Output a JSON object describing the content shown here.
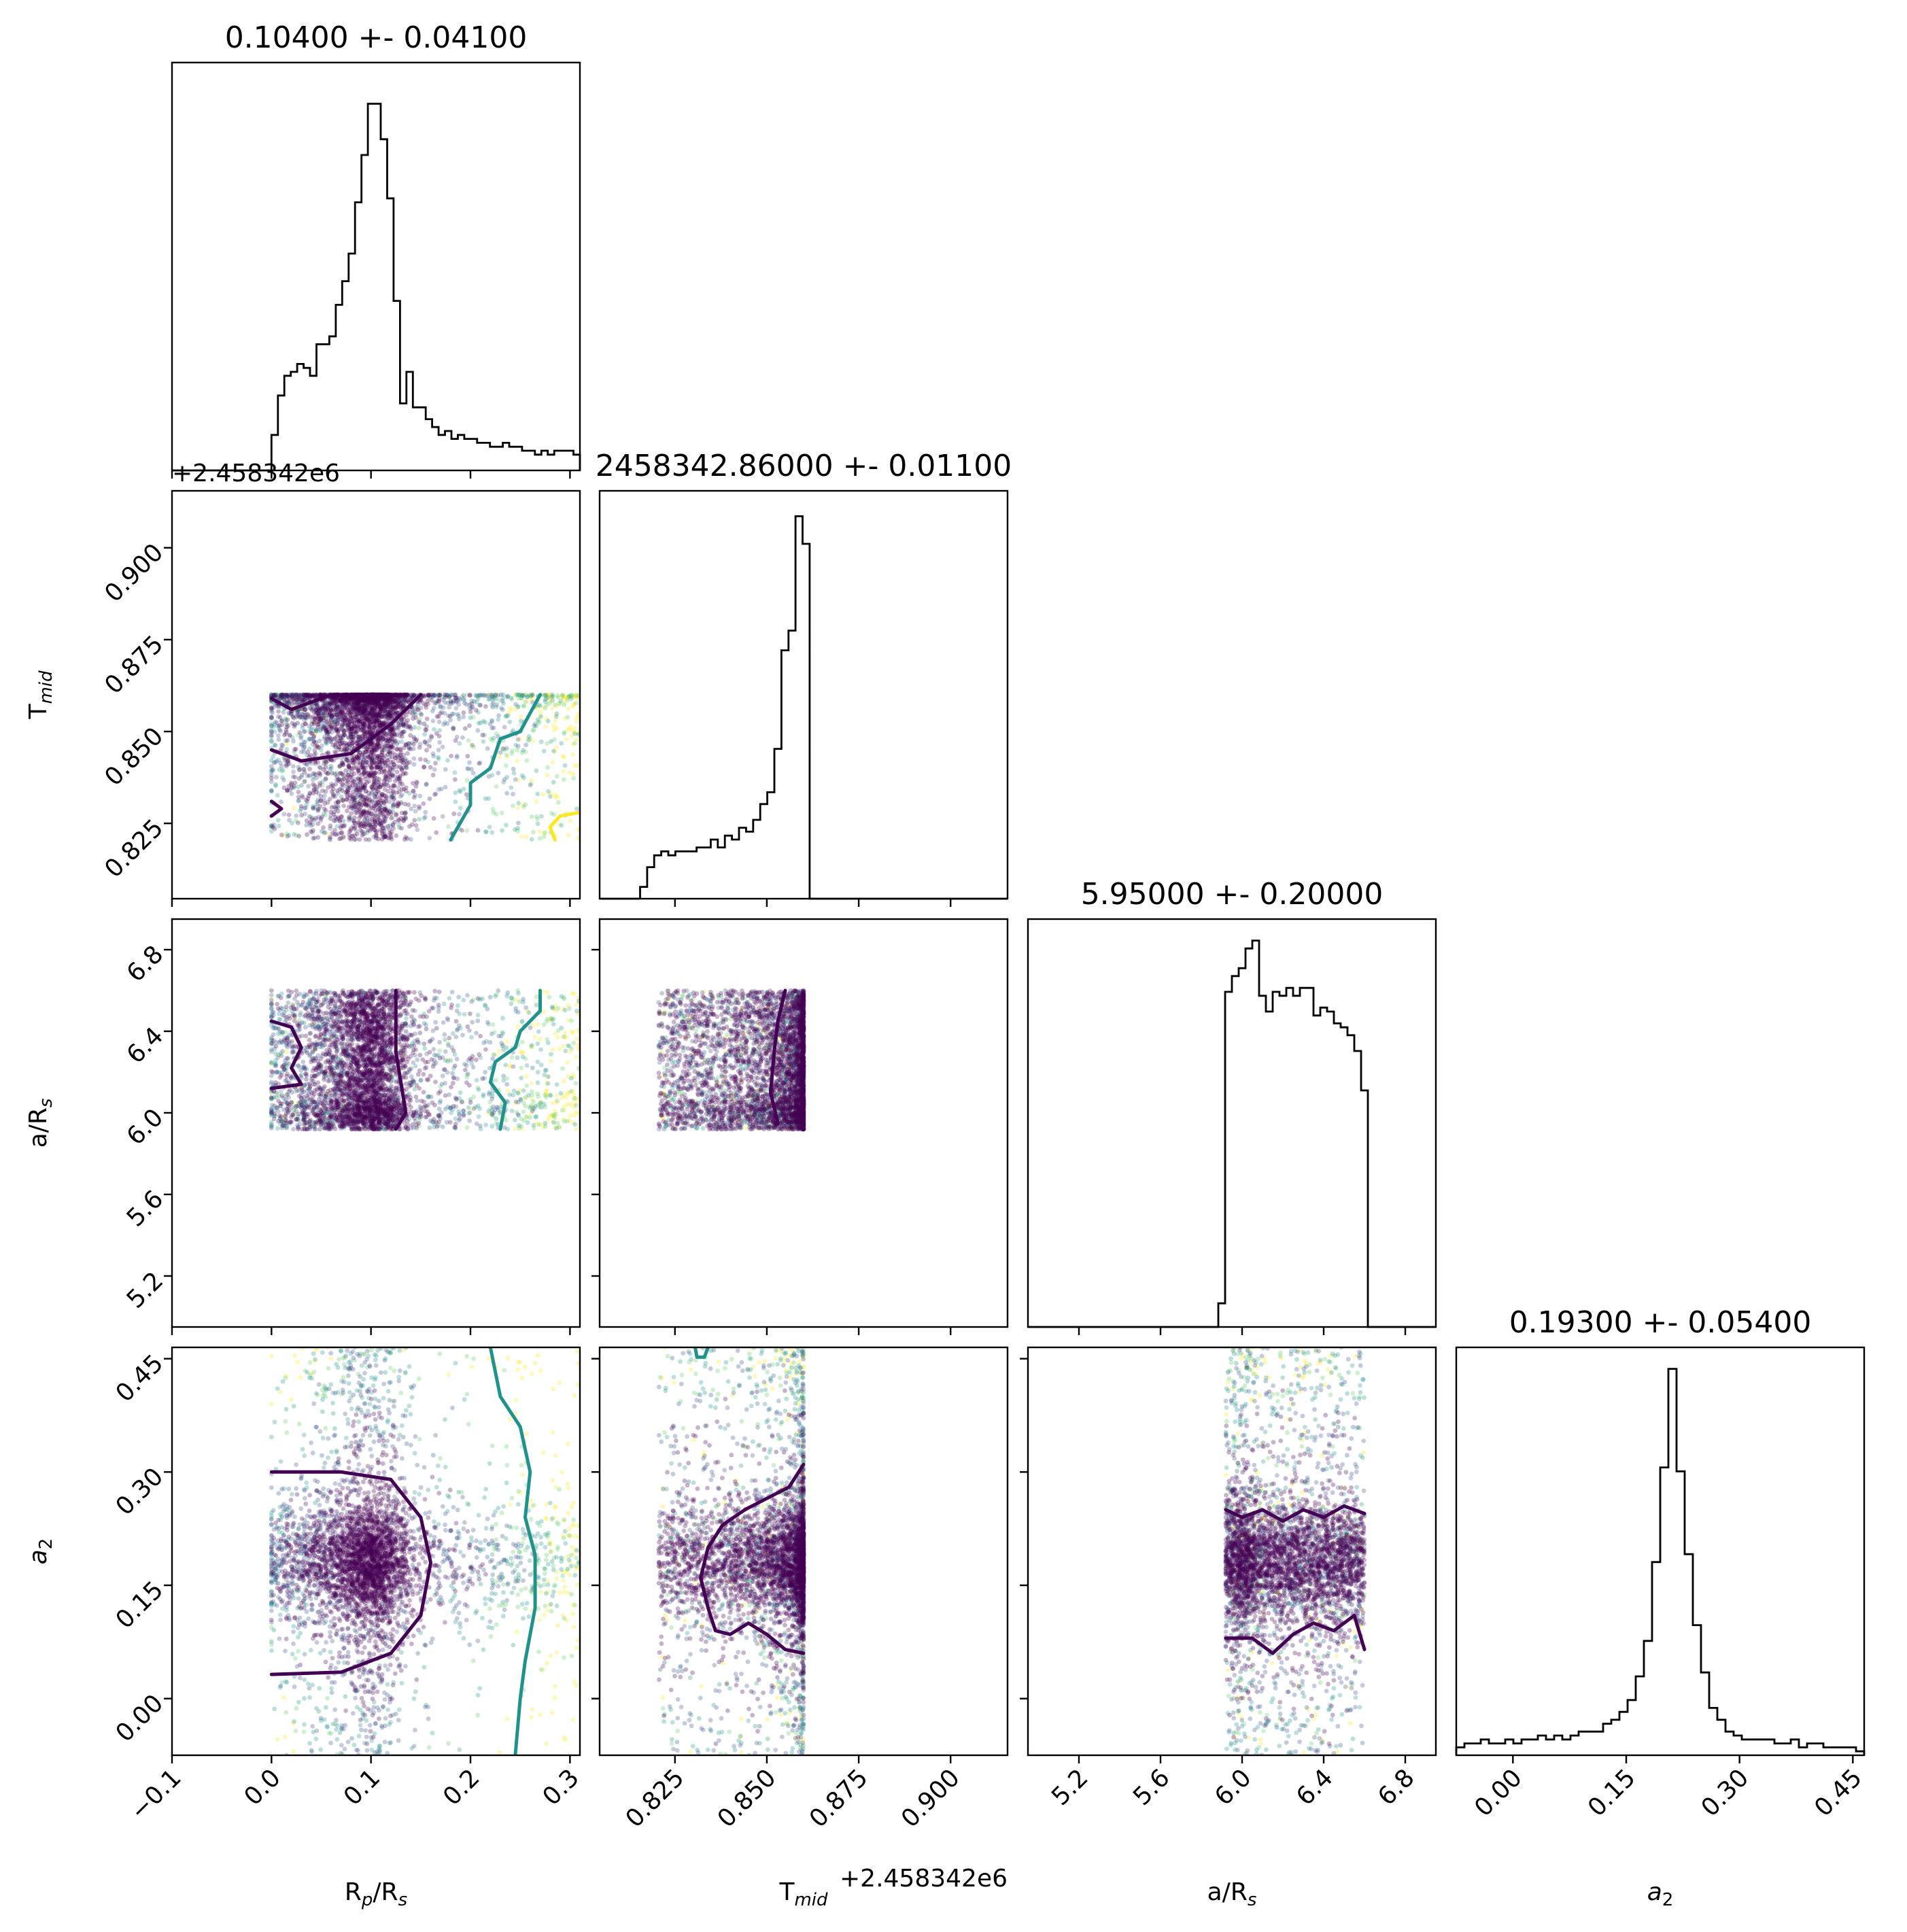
{
  "chart_data": {
    "type": "scatter",
    "kind": "corner-plot",
    "parameters": [
      {
        "label": "R",
        "sub": "p",
        "label2": "/R",
        "sub2": "s",
        "range": [
          -0.1,
          0.31
        ],
        "ticks": [
          -0.1,
          0.0,
          0.1,
          0.2,
          0.3
        ],
        "tick_labels": [
          "−0.1",
          "0.0",
          "0.1",
          "0.2",
          "0.3"
        ]
      },
      {
        "label": "T",
        "sub": "mid",
        "label2": "",
        "sub2": "",
        "range": [
          0.8045,
          0.9155
        ],
        "ticks": [
          0.825,
          0.85,
          0.875,
          0.9
        ],
        "tick_labels": [
          "0.825",
          "0.850",
          "0.875",
          "0.900"
        ],
        "offset_text": "+2.458342e6"
      },
      {
        "label": "a/R",
        "sub": "s",
        "label2": "",
        "sub2": "",
        "range": [
          4.95,
          6.95
        ],
        "ticks": [
          5.2,
          5.6,
          6.0,
          6.4,
          6.8
        ],
        "tick_labels": [
          "5.2",
          "5.6",
          "6.0",
          "6.4",
          "6.8"
        ]
      },
      {
        "label": "a",
        "sub": "2",
        "label2": "",
        "sub2": "",
        "italic": true,
        "range": [
          -0.075,
          0.465
        ],
        "ticks": [
          0.0,
          0.15,
          0.3,
          0.45
        ],
        "tick_labels": [
          "0.00",
          "0.15",
          "0.30",
          "0.45"
        ]
      }
    ],
    "titles": [
      "0.10400 +- 0.04100",
      "2458342.86000 +- 0.01100",
      "5.95000 +- 0.20000",
      "0.19300 +- 0.05400"
    ],
    "histograms": [
      {
        "edges": [
          -0.1,
          0.31
        ],
        "values": [
          0,
          0,
          0,
          0,
          0,
          0,
          0,
          0,
          0,
          0,
          0,
          0,
          0,
          0,
          0,
          0,
          0,
          0,
          0,
          0,
          0,
          0,
          0,
          0,
          0,
          0,
          0,
          0,
          0,
          0,
          0,
          0,
          0,
          0,
          0,
          0,
          0,
          0,
          0,
          0,
          0,
          0,
          0,
          0,
          0,
          0,
          0,
          0,
          0,
          0,
          0,
          0,
          0,
          0,
          0,
          0,
          0,
          0,
          0,
          0,
          0,
          0,
          0,
          0,
          0,
          0,
          0,
          0,
          0,
          0
        ]
      },
      {
        "edges": [
          0.8045,
          0.9155
        ],
        "values": [
          0,
          0,
          0,
          0,
          0,
          0,
          0,
          0,
          0,
          0,
          0,
          0,
          0,
          0,
          0,
          0,
          0,
          0,
          0,
          0,
          0,
          0,
          0,
          0,
          0,
          0,
          0,
          0,
          0,
          0,
          0,
          0,
          0,
          0,
          0,
          0,
          0,
          0,
          0,
          0,
          0,
          0,
          0,
          0,
          0,
          0,
          0,
          0,
          0,
          0,
          0,
          0,
          0,
          0,
          0,
          0,
          0,
          0,
          0,
          0,
          0,
          0,
          0,
          0,
          0,
          0,
          0,
          0,
          0,
          0
        ]
      },
      {
        "edges": [
          4.95,
          6.95
        ],
        "values": [
          0,
          0,
          0,
          0,
          0,
          0,
          0,
          0,
          0,
          0,
          0,
          0,
          0,
          0,
          0,
          0,
          0,
          0,
          0,
          0,
          0,
          0,
          0,
          0,
          0,
          0,
          0,
          0,
          0,
          0,
          0,
          0,
          0,
          0,
          0,
          0,
          0,
          0,
          0,
          0,
          0,
          0,
          0,
          0,
          0,
          0,
          0,
          0,
          0,
          0,
          0,
          0,
          0,
          0,
          0,
          0,
          0,
          0,
          0,
          0,
          0,
          0,
          0,
          0,
          0,
          0,
          0,
          0,
          0,
          0
        ]
      },
      {
        "edges": [
          -0.075,
          0.465
        ],
        "values": [
          0,
          0,
          0,
          0,
          0,
          0,
          0,
          0,
          0,
          0,
          0,
          0,
          0,
          0,
          0,
          0,
          0,
          0,
          0,
          0,
          0,
          0,
          0,
          0,
          0,
          0,
          0,
          0,
          0,
          0,
          0,
          0,
          0,
          0,
          0,
          0,
          0,
          0,
          0,
          0,
          0,
          0,
          0,
          0,
          0,
          0,
          0,
          0,
          0,
          0,
          0,
          0,
          0,
          0,
          0,
          0,
          0,
          0,
          0,
          0,
          0,
          0,
          0,
          0,
          0,
          0,
          0,
          0,
          0,
          0
        ]
      }
    ],
    "histogram_values": [
      [
        0,
        0,
        0,
        0,
        0,
        0,
        0,
        0,
        0,
        0,
        0,
        0,
        0,
        0,
        0,
        0,
        0,
        0,
        0,
        0,
        0,
        0,
        0,
        0,
        0,
        0,
        0,
        0,
        0,
        0,
        0,
        0,
        0,
        0,
        0,
        0,
        0,
        0,
        0,
        0,
        0,
        0,
        0,
        0,
        0,
        0,
        0,
        0,
        0,
        0,
        0,
        0,
        0,
        0,
        0,
        0,
        0,
        0,
        0,
        0,
        0,
        0,
        0,
        0,
        0,
        0,
        0,
        0,
        0,
        0
      ],
      [],
      [],
      []
    ],
    "hist_bins": [
      {
        "x_from": 0.0,
        "x_to": 0.31,
        "values": [
          0.09,
          0.19,
          0.24,
          0.25,
          0.27,
          0.26,
          0.24,
          0.32,
          0.32,
          0.34,
          0.42,
          0.48,
          0.55,
          0.68,
          0.8,
          0.93,
          0.93,
          0.84,
          0.69,
          0.43,
          0.17,
          0.25,
          0.16,
          0.16,
          0.13,
          0.11,
          0.09,
          0.1,
          0.08,
          0.09,
          0.08,
          0.08,
          0.07,
          0.07,
          0.06,
          0.06,
          0.07,
          0.06,
          0.06,
          0.05,
          0.05,
          0.04,
          0.05,
          0.04,
          0.05,
          0.05,
          0.05,
          0.04
        ]
      },
      {
        "x_from": 0.8155,
        "x_to": 0.9155,
        "values": [
          0.03,
          0.08,
          0.11,
          0.12,
          0.11,
          0.12,
          0.12,
          0.12,
          0.13,
          0.13,
          0.15,
          0.13,
          0.16,
          0.15,
          0.18,
          0.17,
          0.2,
          0.24,
          0.27,
          0.38,
          0.63,
          0.68,
          0.97,
          0.9,
          0,
          0,
          0,
          0,
          0,
          0,
          0,
          0,
          0,
          0,
          0,
          0,
          0,
          0,
          0,
          0,
          0,
          0,
          0,
          0,
          0,
          0,
          0,
          0,
          0,
          0,
          0,
          0
        ]
      },
      {
        "x_from": 4.95,
        "x_to": 6.95,
        "values": [
          0,
          0,
          0,
          0,
          0,
          0,
          0,
          0,
          0,
          0,
          0,
          0,
          0,
          0,
          0,
          0,
          0,
          0,
          0,
          0,
          0,
          0,
          0,
          0,
          0,
          0,
          0,
          0,
          0.06,
          0.85,
          0.89,
          0.91,
          0.96,
          0.98,
          0.84,
          0.8,
          0.85,
          0.84,
          0.86,
          0.84,
          0.86,
          0.86,
          0.79,
          0.81,
          0.8,
          0.77,
          0.76,
          0.74,
          0.7,
          0.6,
          0,
          0,
          0,
          0,
          0,
          0,
          0,
          0,
          0,
          0
        ]
      },
      {
        "x_from": -0.075,
        "x_to": 0.465,
        "values": [
          0.02,
          0.03,
          0.03,
          0.04,
          0.03,
          0.03,
          0.04,
          0.03,
          0.04,
          0.04,
          0.05,
          0.04,
          0.05,
          0.04,
          0.05,
          0.06,
          0.06,
          0.06,
          0.08,
          0.09,
          0.11,
          0.14,
          0.2,
          0.29,
          0.49,
          0.73,
          0.98,
          0.72,
          0.51,
          0.33,
          0.21,
          0.12,
          0.09,
          0.06,
          0.05,
          0.04,
          0.04,
          0.04,
          0.04,
          0.03,
          0.03,
          0.04,
          0.02,
          0.03,
          0.03,
          0.02,
          0.02,
          0.02,
          0.02,
          0.01
        ]
      }
    ],
    "colormap": [
      "#440154",
      "#3b528b",
      "#21918c",
      "#5ec962",
      "#fde725"
    ],
    "contour_colors": [
      "#440154",
      "#21918c",
      "#fde725"
    ]
  }
}
